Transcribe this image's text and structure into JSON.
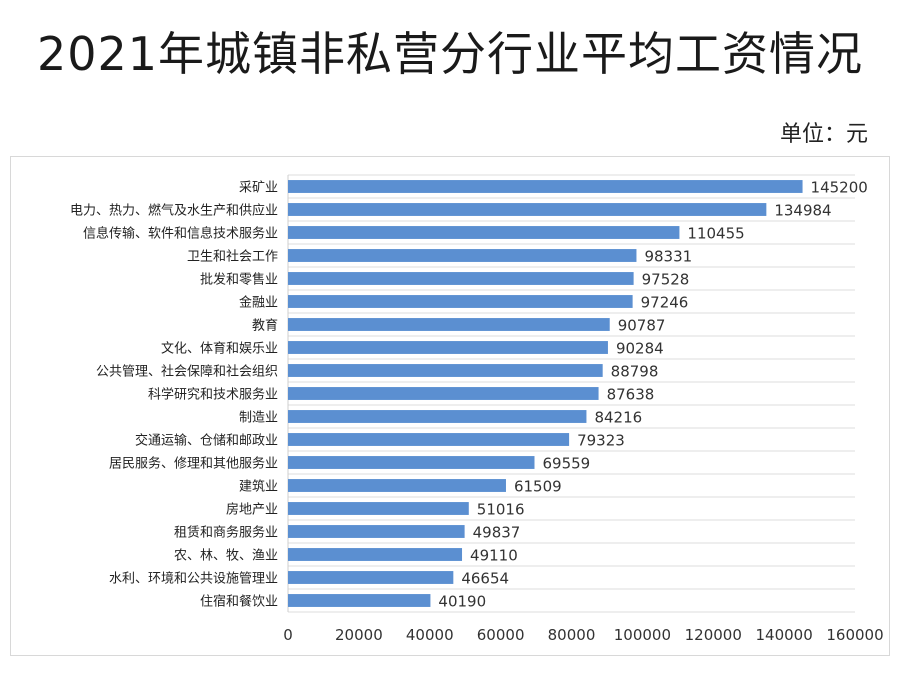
{
  "title": "2021年城镇非私营分行业平均工资情况",
  "unit_label": "单位：元",
  "chart_data": {
    "type": "bar",
    "orientation": "horizontal",
    "bar_color": "#5b8fd1",
    "grid": true,
    "xlim": [
      0,
      160000
    ],
    "xticks": [
      0,
      20000,
      40000,
      60000,
      80000,
      100000,
      120000,
      140000,
      160000
    ],
    "categories": [
      "采矿业",
      "电力、热力、燃气及水生产和供应业",
      "信息传输、软件和信息技术服务业",
      "卫生和社会工作",
      "批发和零售业",
      "金融业",
      "教育",
      "文化、体育和娱乐业",
      "公共管理、社会保障和社会组织",
      "科学研究和技术服务业",
      "制造业",
      "交通运输、仓储和邮政业",
      "居民服务、修理和其他服务业",
      "建筑业",
      "房地产业",
      "租赁和商务服务业",
      "农、林、牧、渔业",
      "水利、环境和公共设施管理业",
      "住宿和餐饮业"
    ],
    "values": [
      145200,
      134984,
      110455,
      98331,
      97528,
      97246,
      90787,
      90284,
      88798,
      87638,
      84216,
      79323,
      69559,
      61509,
      51016,
      49837,
      49110,
      46654,
      40190
    ]
  }
}
